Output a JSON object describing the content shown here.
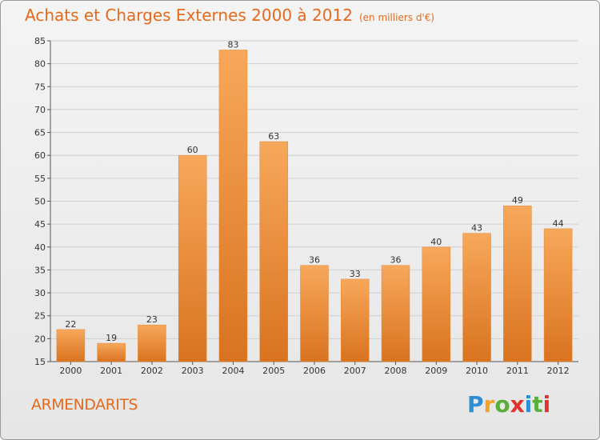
{
  "header": {
    "title": "Achats et Charges Externes 2000 à 2012",
    "subtitle": "(en milliers d'€)"
  },
  "footer": {
    "location": "ARMENDARITS",
    "logo_text": "Proxiti",
    "logo_colors": [
      "#2e8fd6",
      "#f2a227",
      "#5aae3a",
      "#e2342b",
      "#2e8fd6",
      "#5aae3a",
      "#e2342b"
    ]
  },
  "colors": {
    "bar_top": "#f7a85a",
    "bar_bottom": "#d9731f",
    "accent": "#e56a1c",
    "grid": "#cfcfcf"
  },
  "chart_data": {
    "type": "bar",
    "title": "Achats et Charges Externes 2000 à 2012",
    "subtitle": "(en milliers d'€)",
    "categories": [
      "2000",
      "2001",
      "2002",
      "2003",
      "2004",
      "2005",
      "2006",
      "2007",
      "2008",
      "2009",
      "2010",
      "2011",
      "2012"
    ],
    "values": [
      22,
      19,
      23,
      60,
      83,
      63,
      36,
      33,
      36,
      40,
      43,
      49,
      44
    ],
    "ylim": [
      15,
      85
    ],
    "yticks": [
      15,
      20,
      25,
      30,
      35,
      40,
      45,
      50,
      55,
      60,
      65,
      70,
      75,
      80,
      85
    ],
    "grid": true,
    "legend": "none"
  }
}
